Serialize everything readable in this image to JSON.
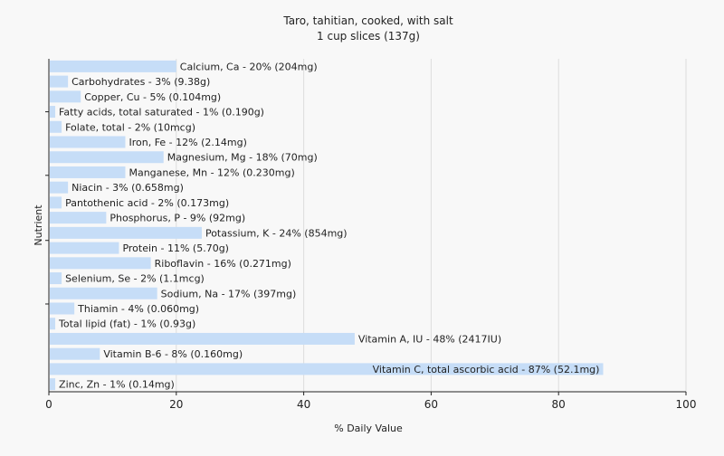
{
  "chart_data": {
    "type": "bar",
    "orientation": "horizontal",
    "title": "Taro, tahitian, cooked, with salt",
    "subtitle": "1 cup slices (137g)",
    "xlabel": "% Daily Value",
    "ylabel": "Nutrient",
    "xlim": [
      0,
      100
    ],
    "xticks": [
      0,
      20,
      40,
      60,
      80,
      100
    ],
    "grid": true,
    "bar_color": "#c6ddf7",
    "grid_color": "#dddddd",
    "categories": [
      "Calcium, Ca - 20% (204mg)",
      "Carbohydrates - 3% (9.38g)",
      "Copper, Cu - 5% (0.104mg)",
      "Fatty acids, total saturated - 1% (0.190g)",
      "Folate, total - 2% (10mcg)",
      "Iron, Fe - 12% (2.14mg)",
      "Magnesium, Mg - 18% (70mg)",
      "Manganese, Mn - 12% (0.230mg)",
      "Niacin - 3% (0.658mg)",
      "Pantothenic acid - 2% (0.173mg)",
      "Phosphorus, P - 9% (92mg)",
      "Potassium, K - 24% (854mg)",
      "Protein - 11% (5.70g)",
      "Riboflavin - 16% (0.271mg)",
      "Selenium, Se - 2% (1.1mcg)",
      "Sodium, Na - 17% (397mg)",
      "Thiamin - 4% (0.060mg)",
      "Total lipid (fat) - 1% (0.93g)",
      "Vitamin A, IU - 48% (2417IU)",
      "Vitamin B-6 - 8% (0.160mg)",
      "Vitamin C, total ascorbic acid - 87% (52.1mg)",
      "Zinc, Zn - 1% (0.14mg)"
    ],
    "values": [
      20,
      3,
      5,
      1,
      2,
      12,
      18,
      12,
      3,
      2,
      9,
      24,
      11,
      16,
      2,
      17,
      4,
      1,
      48,
      8,
      87,
      1
    ]
  }
}
